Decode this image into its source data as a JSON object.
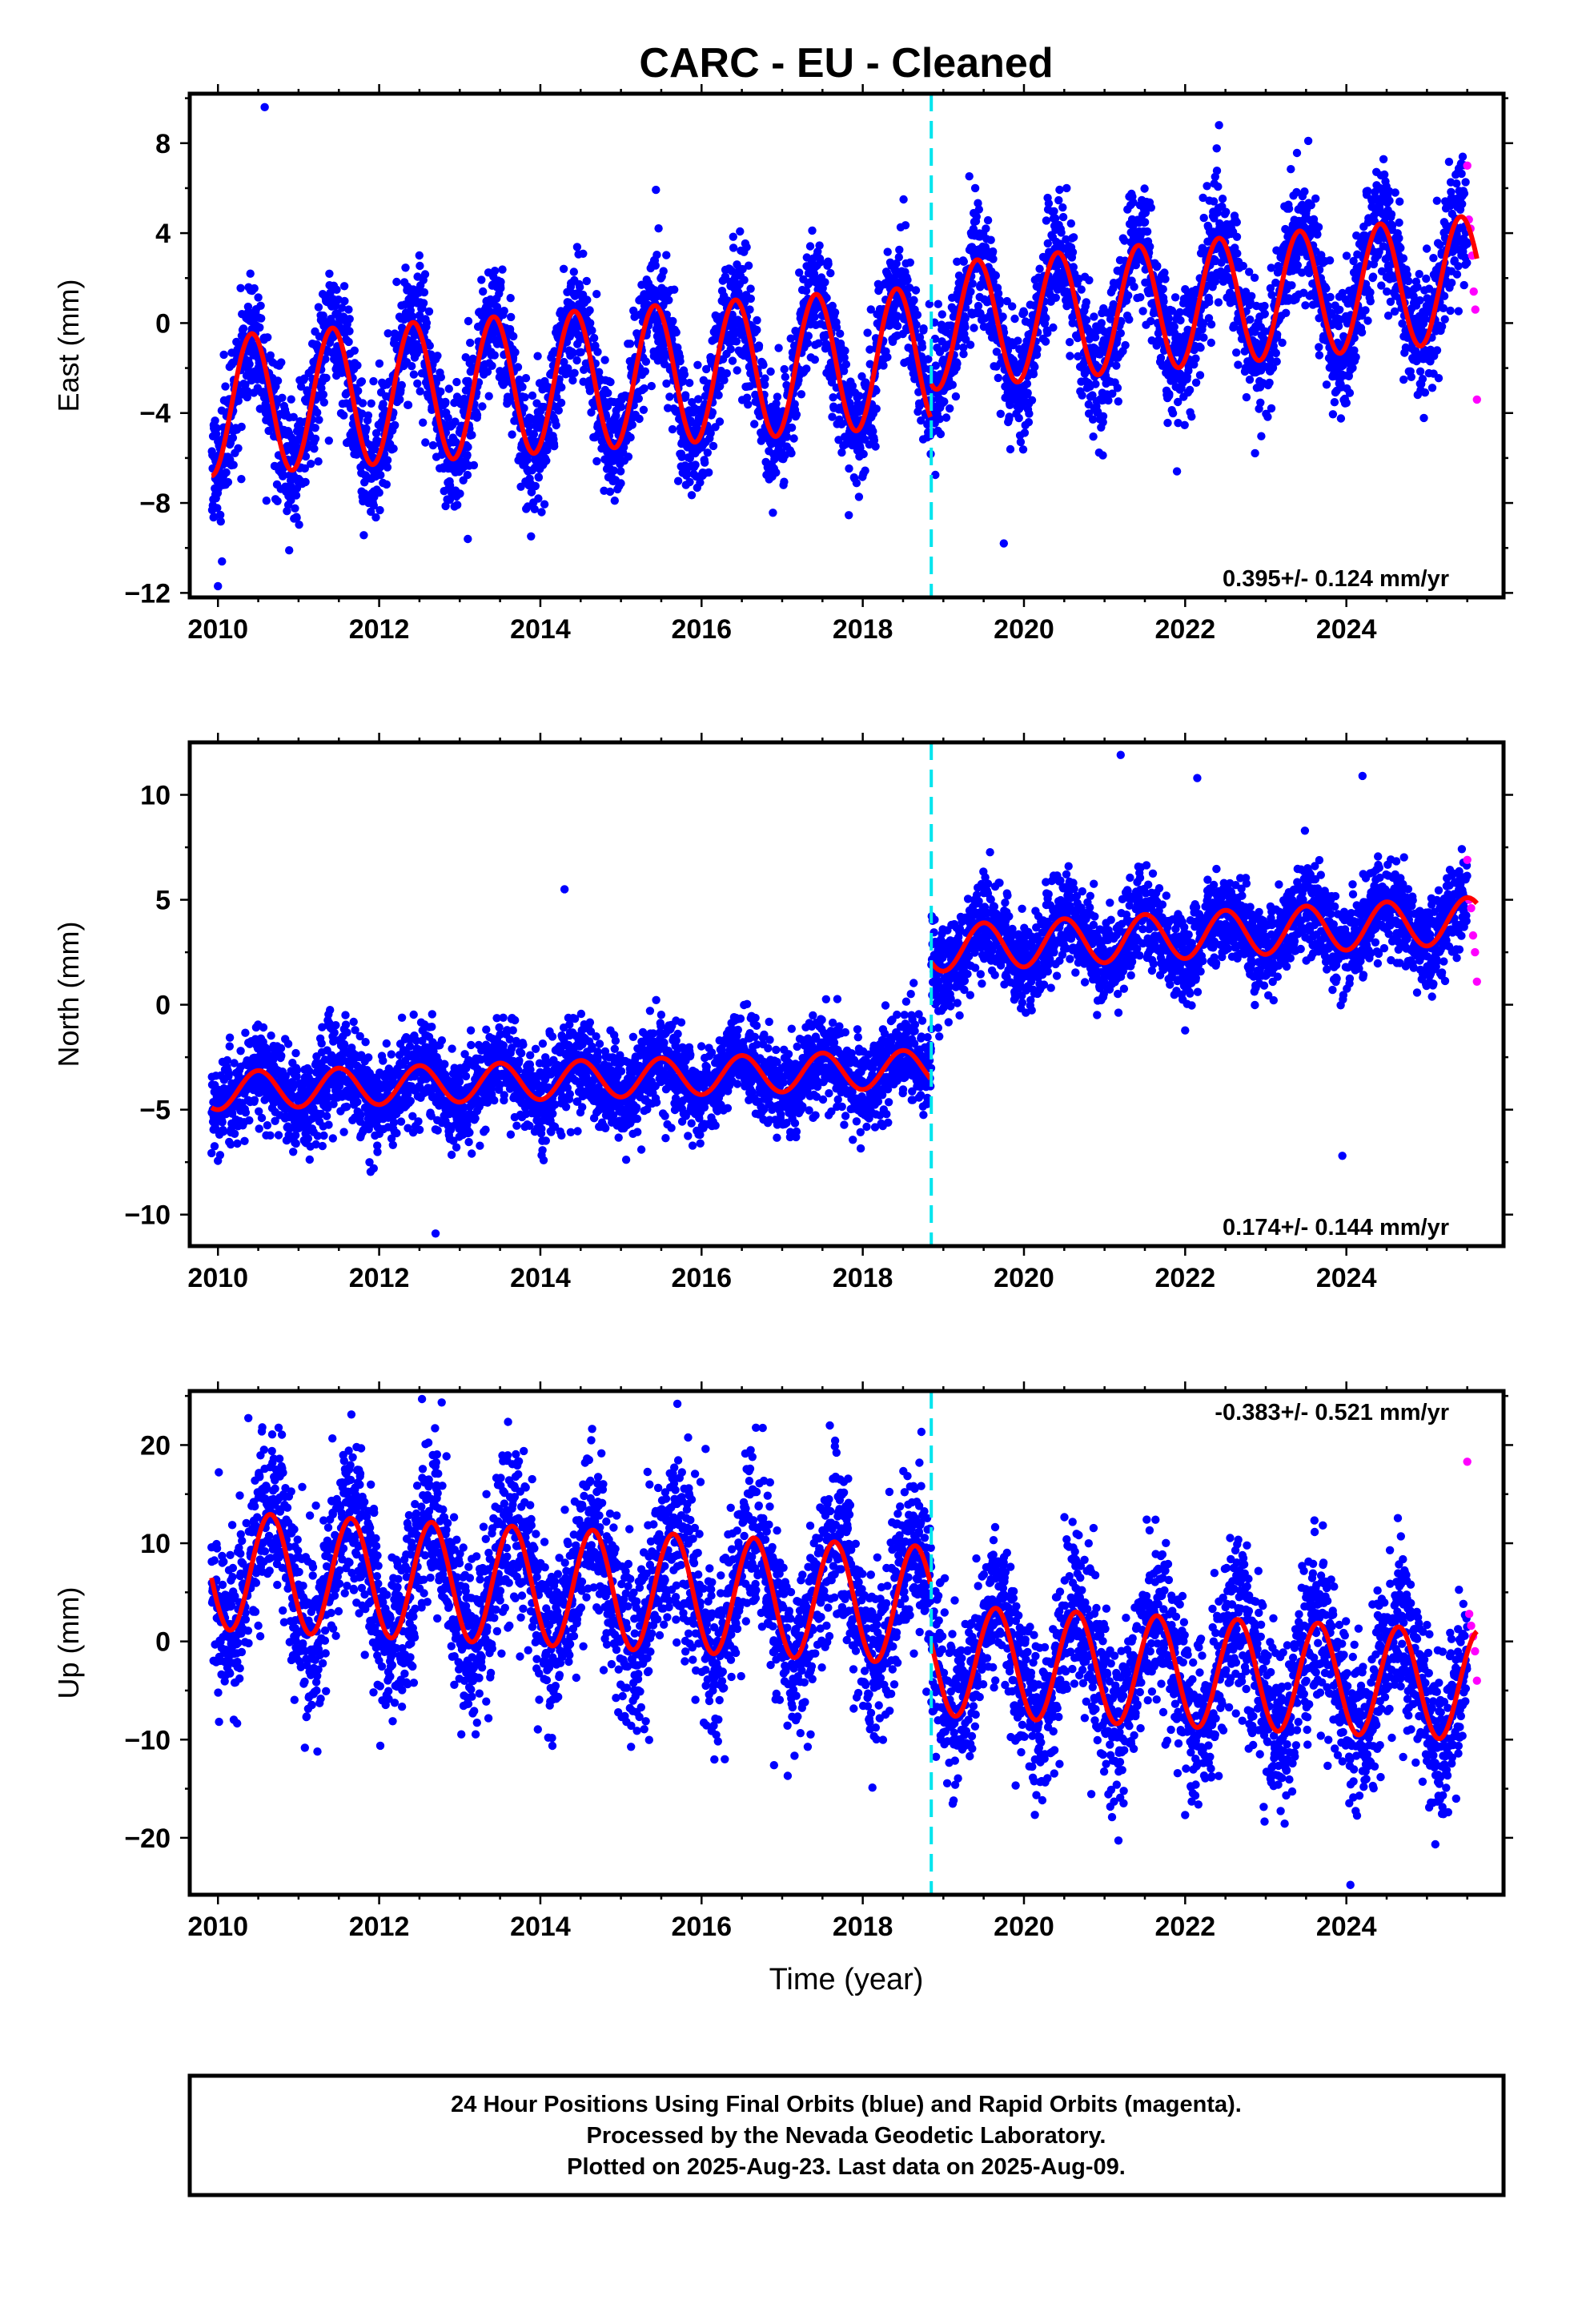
{
  "title": "CARC  - EU - Cleaned",
  "footer": {
    "lines": [
      "24 Hour Positions Using Final Orbits (blue) and Rapid Orbits (magenta).",
      "Processed by the Nevada Geodetic Laboratory.",
      "Plotted on 2025-Aug-23. Last data on 2025-Aug-09."
    ]
  },
  "xlabel": "Time (year)",
  "colors": {
    "final_orbits": "#0000ff",
    "rapid_orbits": "#ff00ff",
    "model": "#ff0000",
    "equipment_change": "#00e5ee"
  },
  "chart_data": [
    {
      "type": "scatter",
      "name": "east",
      "ylabel": "East (mm)",
      "xlim": [
        2009.65,
        2025.95
      ],
      "ylim": [
        -12.2,
        10.2
      ],
      "xticks": [
        2010,
        2012,
        2014,
        2016,
        2018,
        2020,
        2022,
        2024
      ],
      "yticks": [
        -12,
        -8,
        -4,
        0,
        4,
        8
      ],
      "ytick_labels": [
        "−12",
        "−8",
        "−4",
        "0",
        "4",
        "8"
      ],
      "rate_text": "0.395+/- 0.124 mm/yr",
      "rate_position": "bottom-right",
      "break_year": 2018.85,
      "model": {
        "pre": {
          "offset": -1.8,
          "trend": 0.25,
          "amplitude": 3.1,
          "peak_year_fraction": 0.42
        },
        "post": {
          "offset": -0.6,
          "trend": 0.32,
          "amplitude": 2.8,
          "peak_year_fraction": 0.42
        }
      },
      "noise_sigma": 1.35,
      "final_orbit_range": [
        2009.92,
        2025.5
      ],
      "rapid_orbit_range": [
        2025.5,
        2025.62
      ],
      "rapid_points": [
        7.0,
        4.6,
        4.2,
        3.0,
        1.4,
        0.6,
        -3.4
      ],
      "outliers": [
        [
          2010.58,
          9.6
        ],
        [
          2010.05,
          -10.6
        ],
        [
          2010.0,
          -11.7
        ],
        [
          2013.1,
          -9.6
        ],
        [
          2019.75,
          -9.8
        ],
        [
          2022.42,
          8.8
        ]
      ]
    },
    {
      "type": "scatter",
      "name": "north",
      "ylabel": "North (mm)",
      "xlim": [
        2009.65,
        2025.95
      ],
      "ylim": [
        -11.5,
        12.5
      ],
      "xticks": [
        2010,
        2012,
        2014,
        2016,
        2018,
        2020,
        2022,
        2024
      ],
      "yticks": [
        -10,
        -5,
        0,
        5,
        10
      ],
      "ytick_labels": [
        "−10",
        "−5",
        "0",
        "5",
        "10"
      ],
      "rate_text": "0.174+/- 0.144 mm/yr",
      "rate_position": "bottom-right",
      "break_year": 2018.85,
      "model": {
        "pre": {
          "offset": -3.2,
          "trend": 0.12,
          "amplitude": 0.9,
          "peak_year_fraction": 0.5
        },
        "post": {
          "offset": 2.4,
          "trend": 0.2,
          "amplitude": 1.1,
          "peak_year_fraction": 0.5
        }
      },
      "noise_sigma": 1.1,
      "final_orbit_range": [
        2009.92,
        2025.5
      ],
      "rapid_orbit_range": [
        2025.5,
        2025.62
      ],
      "rapid_points": [
        6.9,
        5.0,
        4.6,
        3.3,
        2.5,
        1.1
      ],
      "outliers": [
        [
          2021.2,
          11.9
        ],
        [
          2022.15,
          10.8
        ],
        [
          2024.2,
          10.9
        ],
        [
          2012.7,
          -10.9
        ],
        [
          2023.95,
          -7.2
        ],
        [
          2014.3,
          5.5
        ]
      ]
    },
    {
      "type": "scatter",
      "name": "up",
      "ylabel": "Up (mm)",
      "xlim": [
        2009.65,
        2025.95
      ],
      "ylim": [
        -25.8,
        25.5
      ],
      "xticks": [
        2010,
        2012,
        2014,
        2016,
        2018,
        2020,
        2022,
        2024
      ],
      "yticks": [
        -20,
        -10,
        0,
        10,
        20
      ],
      "ytick_labels": [
        "−20",
        "−10",
        "0",
        "10",
        "20"
      ],
      "rate_text": "-0.383+/- 0.521 mm/yr",
      "rate_position": "top-right",
      "break_year": 2018.85,
      "model": {
        "pre": {
          "offset": 4.2,
          "trend": -0.4,
          "amplitude": 6.0,
          "peak_year_fraction": 0.65
        },
        "post": {
          "offset": -1.4,
          "trend": -0.38,
          "amplitude": 5.6,
          "peak_year_fraction": 0.65
        }
      },
      "noise_sigma": 4.3,
      "final_orbit_range": [
        2009.92,
        2025.5
      ],
      "rapid_orbit_range": [
        2025.5,
        2025.62
      ],
      "rapid_points": [
        18.3,
        2.8,
        1.6,
        0.5,
        -1.0,
        -4.0
      ],
      "outliers": [
        [
          2010.55,
          21.8
        ],
        [
          2015.7,
          24.2
        ],
        [
          2024.05,
          -24.8
        ],
        [
          2016.05,
          19.6
        ],
        [
          2011.72,
          19.8
        ]
      ]
    }
  ]
}
